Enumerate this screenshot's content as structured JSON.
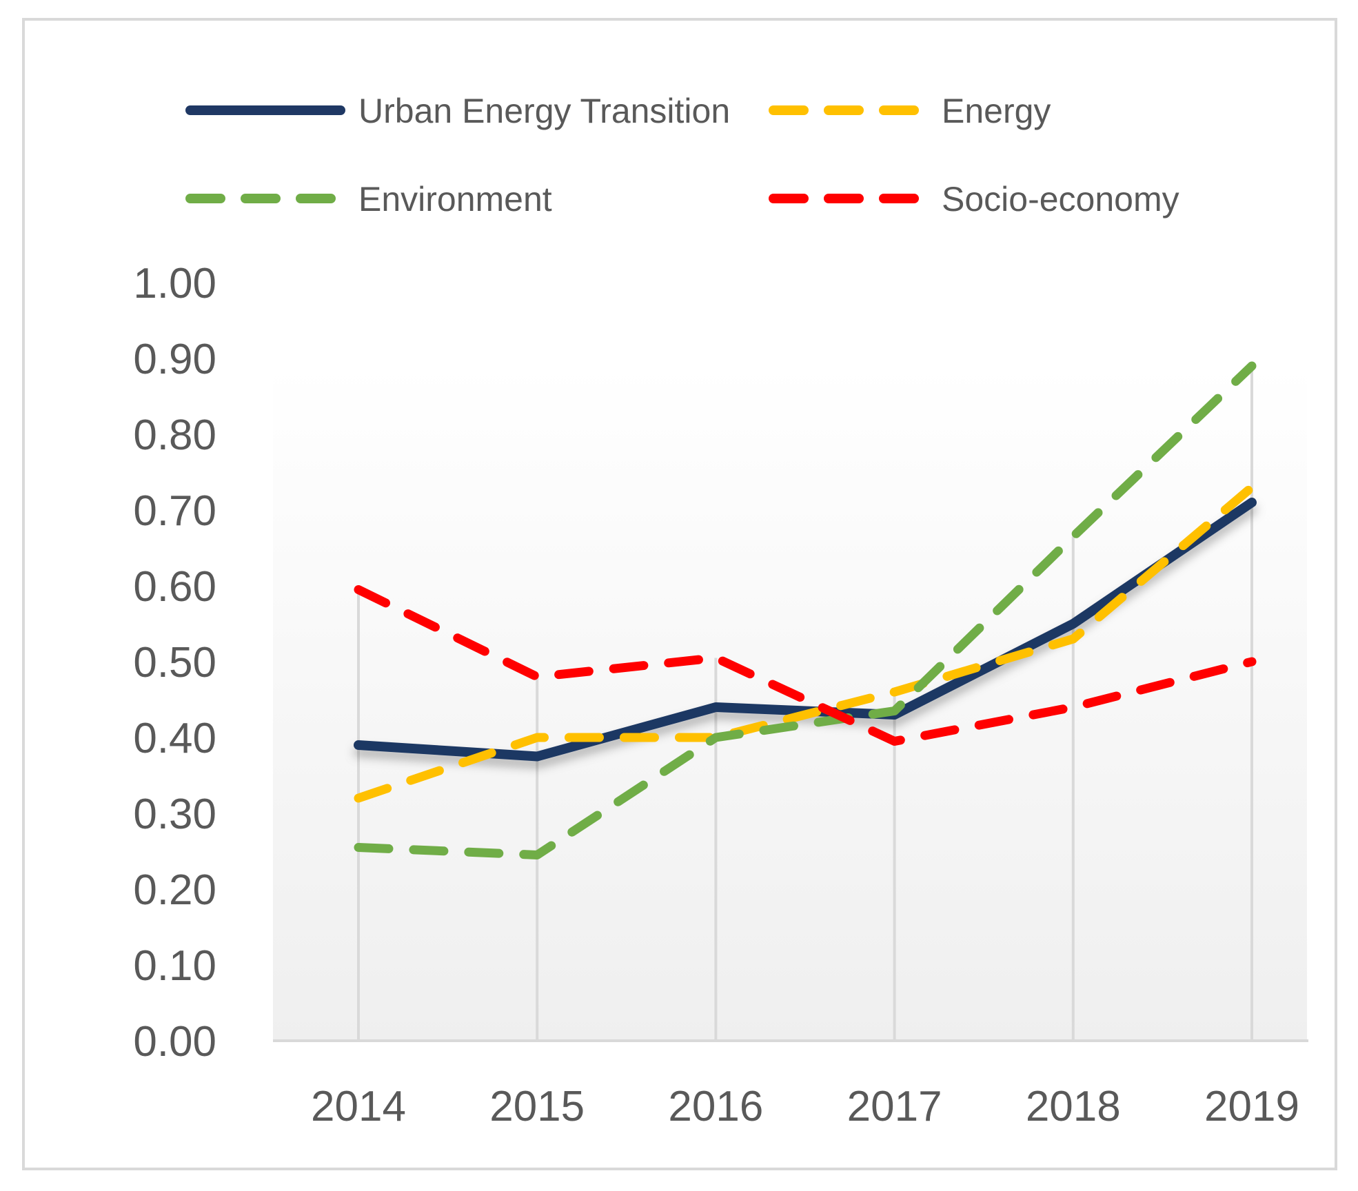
{
  "chart_data": {
    "type": "line",
    "title": "",
    "xlabel": "",
    "ylabel": "",
    "categories": [
      "2014",
      "2015",
      "2016",
      "2017",
      "2018",
      "2019"
    ],
    "ylim": [
      0,
      1
    ],
    "y_ticks": [
      "0.00",
      "0.10",
      "0.20",
      "0.30",
      "0.40",
      "0.50",
      "0.60",
      "0.70",
      "0.80",
      "0.90",
      "1.00"
    ],
    "grid": "vertical drop lines",
    "legend_position": "top",
    "series": [
      {
        "name": "Urban Energy Transition",
        "values": [
          0.39,
          0.375,
          0.44,
          0.43,
          0.55,
          0.71
        ],
        "color": "#1f3864",
        "style": "solid"
      },
      {
        "name": "Energy",
        "values": [
          0.32,
          0.4,
          0.4,
          0.46,
          0.53,
          0.73
        ],
        "color": "#ffc000",
        "style": "dash-dot"
      },
      {
        "name": "Environment",
        "values": [
          0.255,
          0.245,
          0.4,
          0.435,
          0.665,
          0.89
        ],
        "color": "#70ad47",
        "style": "dash-dot"
      },
      {
        "name": "Socio-economy",
        "values": [
          0.595,
          0.48,
          0.505,
          0.395,
          0.44,
          0.5
        ],
        "color": "#ff0000",
        "style": "dash-dot"
      }
    ]
  }
}
